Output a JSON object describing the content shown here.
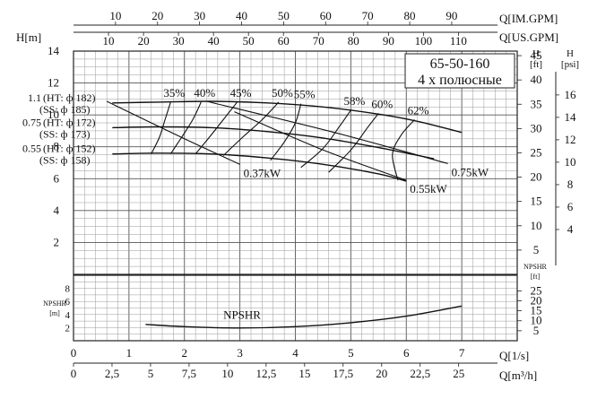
{
  "chart_data": {
    "type": "line",
    "title": "65-50-160",
    "subtitle": "4 х полюсные",
    "x_axis": {
      "label": "Q[1/s]",
      "range": [
        0,
        8
      ],
      "ticks": [
        "0",
        "1",
        "2",
        "3",
        "4",
        "5",
        "6",
        "7"
      ]
    },
    "x_axis_m3h": {
      "label": "Q[m³/h]",
      "ticks": [
        "0",
        "2,5",
        "5",
        "7,5",
        "10",
        "12,5",
        "15",
        "17,5",
        "20",
        "22,5",
        "25"
      ]
    },
    "x_axis_im_gpm": {
      "label": "Q[IM.GPM]",
      "ticks": [
        "10",
        "20",
        "30",
        "40",
        "50",
        "60",
        "70",
        "80",
        "90"
      ]
    },
    "x_axis_us_gpm": {
      "label": "Q[US.GPM]",
      "ticks": [
        "10",
        "20",
        "30",
        "40",
        "50",
        "60",
        "70",
        "80",
        "90",
        "100",
        "110"
      ]
    },
    "y_axis_head": {
      "label": "H[m]",
      "range": [
        0,
        14
      ],
      "ticks": [
        "2",
        "4",
        "6",
        "8",
        "10",
        "12",
        "14"
      ]
    },
    "y_axis_head_ft": {
      "label": "H",
      "unit": "[ft]",
      "ticks": [
        "5",
        "10",
        "15",
        "20",
        "25",
        "30",
        "35",
        "40",
        "45"
      ]
    },
    "y_axis_head_psi": {
      "label": "H",
      "unit": "[psi]",
      "ticks": [
        "4",
        "6",
        "8",
        "10",
        "12",
        "14",
        "16"
      ]
    },
    "y_axis_npshr": {
      "label": "NPSHR",
      "unit": "[m]",
      "range": [
        0,
        10
      ],
      "ticks": [
        "2",
        "4",
        "6",
        "8"
      ]
    },
    "y_axis_npshr_ft": {
      "label": "NPSHR",
      "unit": "[ft]",
      "ticks": [
        "5",
        "10",
        "15",
        "20",
        "25"
      ]
    },
    "grid": true,
    "series": [
      {
        "name": "1.1",
        "labels": [
          "(HT: ф 182)",
          "(SS: ф 185)"
        ],
        "x": [
          0.7,
          1.5,
          2.5,
          3.5,
          4.5,
          5.5,
          6.2,
          7.0
        ],
        "y": [
          10.75,
          10.8,
          10.85,
          10.75,
          10.5,
          10.05,
          9.6,
          8.9
        ]
      },
      {
        "name": "0.75",
        "labels": [
          "(HT: ф 172)",
          "(SS: ф 173)"
        ],
        "x": [
          0.7,
          1.5,
          2.5,
          3.5,
          4.5,
          5.5,
          6.5
        ],
        "y": [
          9.2,
          9.25,
          9.2,
          8.95,
          8.55,
          7.95,
          7.25
        ]
      },
      {
        "name": "0.55",
        "labels": [
          "(HT: ф 152)",
          "(SS: ф 158)"
        ],
        "x": [
          0.7,
          1.5,
          2.5,
          3.5,
          4.5,
          5.5,
          6.0
        ],
        "y": [
          7.55,
          7.6,
          7.55,
          7.3,
          6.9,
          6.3,
          5.85
        ]
      }
    ],
    "npshr": {
      "name": "NPSHR",
      "x": [
        1.3,
        2.0,
        3.0,
        4.0,
        5.0,
        6.0,
        7.0
      ],
      "y": [
        2.5,
        2.15,
        1.95,
        2.15,
        2.75,
        3.75,
        5.3
      ]
    },
    "efficiency_lines": [
      {
        "label": "35%",
        "x": [
          1.4,
          1.55,
          1.65,
          1.75
        ],
        "y": [
          7.55,
          8.6,
          9.7,
          10.8
        ]
      },
      {
        "label": "40%",
        "x": [
          1.75,
          1.95,
          2.15,
          2.3
        ],
        "y": [
          7.55,
          8.6,
          9.7,
          10.8
        ]
      },
      {
        "label": "45%",
        "x": [
          2.2,
          2.45,
          2.7,
          2.95
        ],
        "y": [
          7.55,
          8.6,
          9.7,
          10.8
        ]
      },
      {
        "label": "50%",
        "x": [
          2.7,
          3.05,
          3.4,
          3.7
        ],
        "y": [
          7.45,
          8.6,
          9.7,
          10.8
        ]
      },
      {
        "label": "55%",
        "x": [
          3.55,
          3.8,
          4.0,
          4.1
        ],
        "y": [
          7.15,
          8.3,
          9.5,
          10.7
        ]
      },
      {
        "label": "58%",
        "x": [
          4.1,
          4.5,
          4.8,
          5.0
        ],
        "y": [
          6.7,
          7.9,
          9.3,
          10.3
        ]
      },
      {
        "label": "60%",
        "x": [
          4.6,
          5.0,
          5.3,
          5.5
        ],
        "y": [
          6.4,
          7.8,
          9.2,
          10.1
        ]
      },
      {
        "label": "62%",
        "x": [
          5.85,
          5.75,
          5.9,
          6.15
        ],
        "y": [
          5.9,
          7.5,
          8.7,
          9.7
        ]
      }
    ],
    "power_lines": [
      {
        "label": "0.37kW",
        "x": [
          0.6,
          2.0,
          3.0
        ],
        "y": [
          10.85,
          8.5,
          6.9
        ]
      },
      {
        "label": "0.55kW",
        "x": [
          2.9,
          4.5,
          6.0
        ],
        "y": [
          10.2,
          7.8,
          5.9
        ]
      },
      {
        "label": "0.75kW",
        "x": [
          2.4,
          4.7,
          6.75
        ],
        "y": [
          10.85,
          8.9,
          6.95
        ]
      }
    ]
  }
}
